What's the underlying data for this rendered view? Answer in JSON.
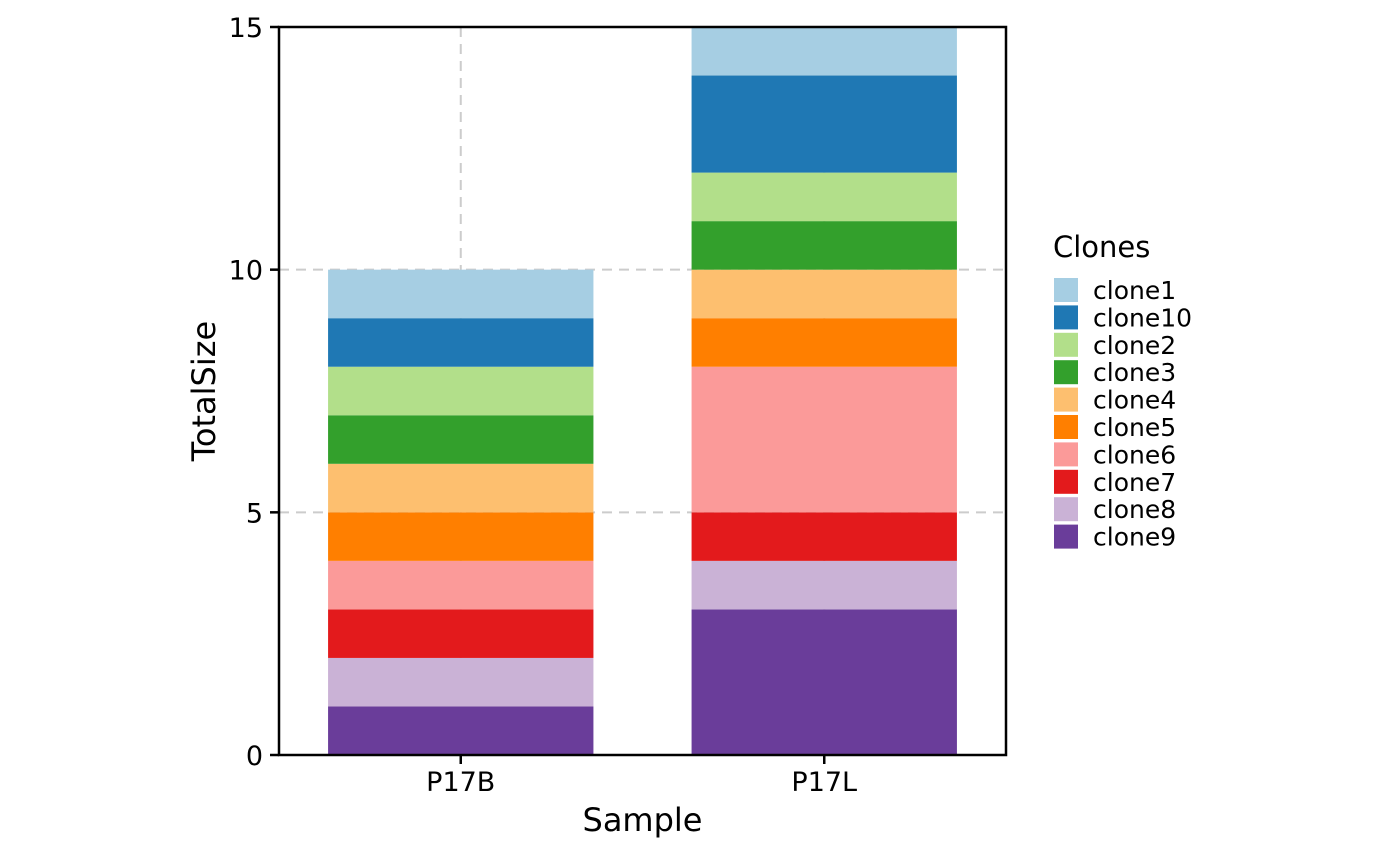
{
  "chart_data": {
    "type": "bar",
    "stacked": true,
    "categories": [
      "P17B",
      "P17L"
    ],
    "series": [
      {
        "name": "clone9",
        "color": "#6A3D9A",
        "values": [
          1,
          3
        ]
      },
      {
        "name": "clone8",
        "color": "#CAB2D6",
        "values": [
          1,
          1
        ]
      },
      {
        "name": "clone7",
        "color": "#E31A1C",
        "values": [
          1,
          1
        ]
      },
      {
        "name": "clone6",
        "color": "#FB9A99",
        "values": [
          1,
          3
        ]
      },
      {
        "name": "clone5",
        "color": "#FF7F00",
        "values": [
          1,
          1
        ]
      },
      {
        "name": "clone4",
        "color": "#FDBF6F",
        "values": [
          1,
          1
        ]
      },
      {
        "name": "clone3",
        "color": "#33A02C",
        "values": [
          1,
          1
        ]
      },
      {
        "name": "clone2",
        "color": "#B2DF8A",
        "values": [
          1,
          1
        ]
      },
      {
        "name": "clone10",
        "color": "#1F78B4",
        "values": [
          1,
          2
        ]
      },
      {
        "name": "clone1",
        "color": "#A6CEE3",
        "values": [
          1,
          1
        ]
      }
    ],
    "legend": {
      "title": "Clones",
      "placement": "right",
      "entries": [
        "clone1",
        "clone10",
        "clone2",
        "clone3",
        "clone4",
        "clone5",
        "clone6",
        "clone7",
        "clone8",
        "clone9"
      ]
    },
    "xlabel": "Sample",
    "ylabel": "TotalSize",
    "ylim": [
      0,
      15
    ],
    "yticks": [
      0,
      5,
      10,
      15
    ],
    "grid": {
      "major": true,
      "style": "dashed",
      "color": "#CCCCCC"
    }
  }
}
